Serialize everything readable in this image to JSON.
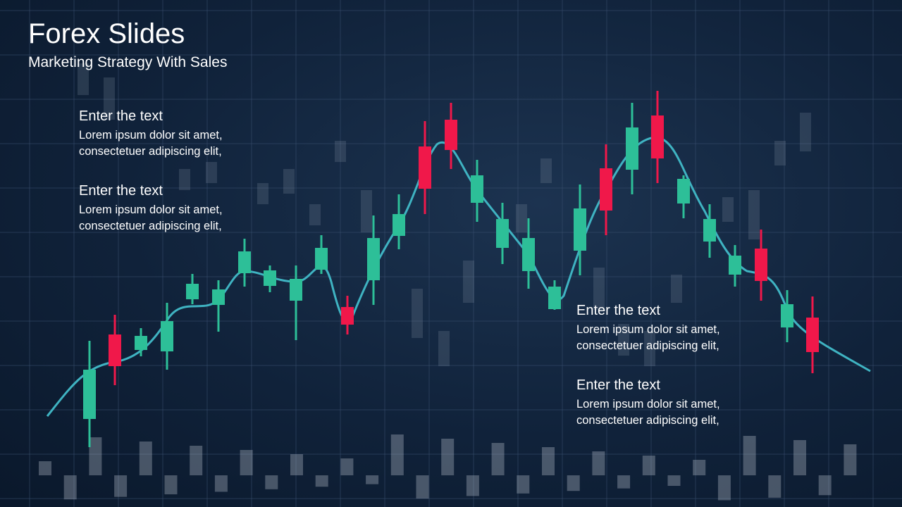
{
  "header": {
    "title": "Forex Slides",
    "subtitle": "Marketing Strategy With Sales"
  },
  "blocks": [
    {
      "heading": "Enter the text",
      "lines": [
        "Lorem ipsum dolor sit amet,",
        "consectetuer adipiscing elit,"
      ]
    },
    {
      "heading": "Enter the text",
      "lines": [
        "Lorem ipsum dolor sit amet,",
        "consectetuer adipiscing elit,"
      ]
    },
    {
      "heading": "Enter the text",
      "lines": [
        "Lorem ipsum dolor sit amet,",
        "consectetuer adipiscing elit,"
      ]
    },
    {
      "heading": "Enter the text",
      "lines": [
        "Lorem ipsum dolor sit amet,",
        "consectetuer adipiscing elit,"
      ]
    }
  ]
}
